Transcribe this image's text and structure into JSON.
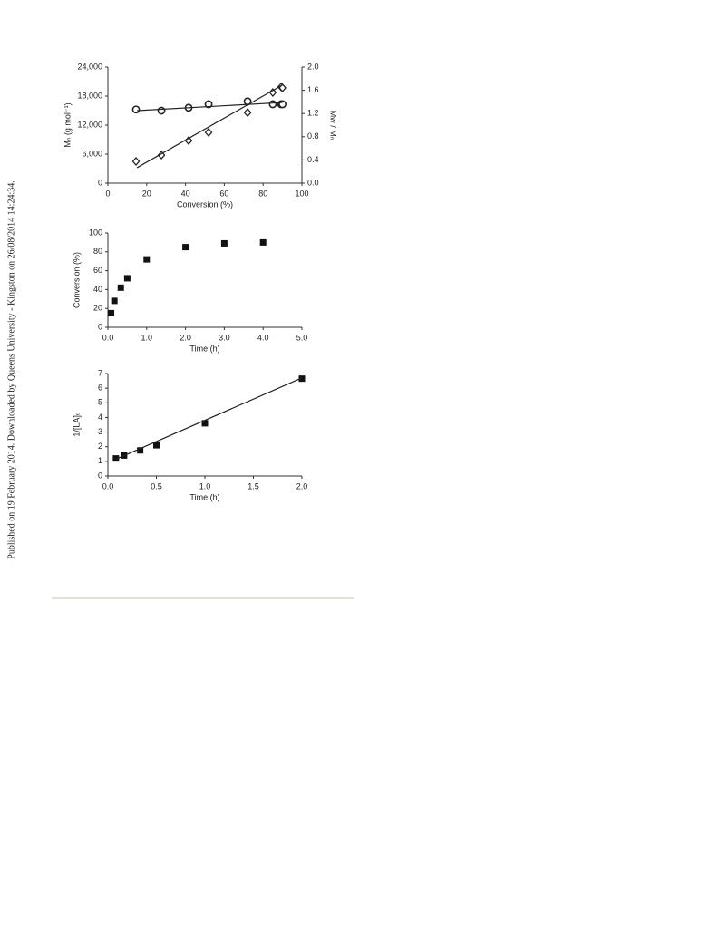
{
  "side_note": "Published on 19 February 2014. Downloaded by Queens University - Kingston on 26/08/2014 14:24:34.",
  "chart_data": [
    {
      "type": "scatter",
      "x_label": "Conversion (%)",
      "y_label": "Mₙ (g mol⁻¹)",
      "y2_label": "Mw / Mₙ",
      "xlim": [
        0,
        100
      ],
      "xticks": [
        0,
        20,
        40,
        60,
        80,
        100
      ],
      "ylim": [
        0,
        24000
      ],
      "yticks": [
        0,
        {
          "value": 6000,
          "label": "6,000"
        },
        {
          "value": 12000,
          "label": "12,000"
        },
        {
          "value": 18000,
          "label": "18,000"
        },
        {
          "value": 24000,
          "label": "24,000"
        }
      ],
      "y2lim": [
        0,
        2
      ],
      "y2ticks": [
        {
          "value": 0,
          "label": "0.0"
        },
        0.4,
        0.8,
        {
          "value": 1.2,
          "label": "1.2"
        },
        1.6,
        {
          "value": 2,
          "label": "2.0"
        }
      ],
      "series": [
        {
          "marker": "diamond",
          "color": "#222222",
          "x": [
            14.5,
            27.6,
            41.6,
            51.9,
            72,
            85,
            89.3,
            90
          ],
          "values": [
            4500,
            5800,
            8800,
            10500,
            14600,
            18750,
            19900,
            19700
          ]
        },
        {
          "marker": "line",
          "color": "#222222",
          "x": [
            15,
            90
          ],
          "values": [
            3200,
            20300
          ]
        },
        {
          "marker": "circle",
          "color": "#222222",
          "axis": "y2",
          "x": [
            14.5,
            27.6,
            41.6,
            51.9,
            72,
            85,
            89.3,
            90
          ],
          "values": [
            1.27,
            1.25,
            1.3,
            1.36,
            1.41,
            1.36,
            1.36,
            1.36
          ]
        },
        {
          "marker": "line",
          "color": "#222222",
          "axis": "y2",
          "x": [
            15,
            90
          ],
          "values": [
            1.25,
            1.39
          ]
        }
      ]
    },
    {
      "type": "scatter",
      "x_label": "Time (h)",
      "y_label": "Conversion (%)",
      "xlim": [
        0,
        5
      ],
      "xticks": [
        {
          "value": 0,
          "label": "0.0"
        },
        {
          "value": 1,
          "label": "1.0"
        },
        {
          "value": 2,
          "label": "2.0"
        },
        {
          "value": 3,
          "label": "3.0"
        },
        {
          "value": 4,
          "label": "4.0"
        },
        {
          "value": 5,
          "label": "5.0"
        }
      ],
      "ylim": [
        0,
        100
      ],
      "yticks": [
        0,
        20,
        40,
        60,
        80,
        100
      ],
      "series": [
        {
          "marker": "square",
          "color": "#111111",
          "x": [
            0.083,
            0.167,
            0.333,
            0.5,
            1,
            2,
            3,
            4
          ],
          "values": [
            15,
            28,
            42,
            52,
            72,
            85,
            89,
            90
          ]
        }
      ]
    },
    {
      "type": "scatter",
      "x_label": "Time (h)",
      "y_label": "1/[LA]ₜ",
      "xlim": [
        0,
        2
      ],
      "xticks": [
        {
          "value": 0,
          "label": "0.0"
        },
        0.5,
        {
          "value": 1,
          "label": "1.0"
        },
        1.5,
        {
          "value": 2,
          "label": "2.0"
        }
      ],
      "ylim": [
        0,
        7
      ],
      "yticks": [
        0,
        1,
        2,
        3,
        4,
        5,
        6,
        7
      ],
      "series": [
        {
          "marker": "square",
          "color": "#111111",
          "x": [
            0.083,
            0.167,
            0.333,
            0.5,
            1,
            2
          ],
          "values": [
            1.2,
            1.4,
            1.75,
            2.1,
            3.6,
            6.65
          ]
        },
        {
          "marker": "line",
          "color": "#222222",
          "x": [
            0.083,
            2
          ],
          "values": [
            1.15,
            6.7
          ]
        }
      ]
    }
  ]
}
